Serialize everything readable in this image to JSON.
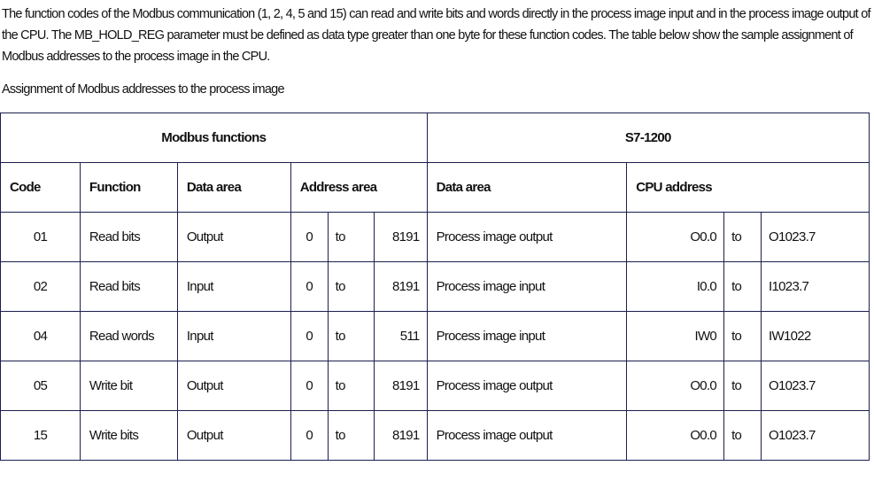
{
  "intro": "The function codes of the Modbus communication (1, 2, 4, 5 and 15) can read and write bits and words directly in the process image input and in the process image output of the CPU. The MB_HOLD_REG parameter must be defined as data type greater than one byte for these function codes. The table below show the sample assignment of Modbus addresses to the process image in the CPU.",
  "caption": "Assignment of Modbus addresses to the process image",
  "table": {
    "group_headers": [
      "Modbus functions",
      "S7-1200"
    ],
    "headers": [
      "Code",
      "Function",
      "Data area",
      "Address area",
      "Data area",
      "CPU address"
    ],
    "rows": [
      {
        "code": "01",
        "function": "Read bits",
        "data_area": "Output",
        "addr_from": "0",
        "addr_to_word": "to",
        "addr_to": "8191",
        "s7_area": "Process image output",
        "cpu_from": "O0.0",
        "cpu_to_word": "to",
        "cpu_to": "O1023.7"
      },
      {
        "code": "02",
        "function": "Read bits",
        "data_area": "Input",
        "addr_from": "0",
        "addr_to_word": "to",
        "addr_to": "8191",
        "s7_area": "Process image input",
        "cpu_from": "I0.0",
        "cpu_to_word": "to",
        "cpu_to": "I1023.7"
      },
      {
        "code": "04",
        "function": "Read words",
        "data_area": "Input",
        "addr_from": "0",
        "addr_to_word": "to",
        "addr_to": "511",
        "s7_area": "Process image input",
        "cpu_from": "IW0",
        "cpu_to_word": "to",
        "cpu_to": "IW1022"
      },
      {
        "code": "05",
        "function": "Write bit",
        "data_area": "Output",
        "addr_from": "0",
        "addr_to_word": "to",
        "addr_to": "8191",
        "s7_area": "Process image output",
        "cpu_from": "O0.0",
        "cpu_to_word": "to",
        "cpu_to": "O1023.7"
      },
      {
        "code": "15",
        "function": "Write bits",
        "data_area": "Output",
        "addr_from": "0",
        "addr_to_word": "to",
        "addr_to": "8191",
        "s7_area": "Process image output",
        "cpu_from": "O0.0",
        "cpu_to_word": "to",
        "cpu_to": "O1023.7"
      }
    ]
  }
}
